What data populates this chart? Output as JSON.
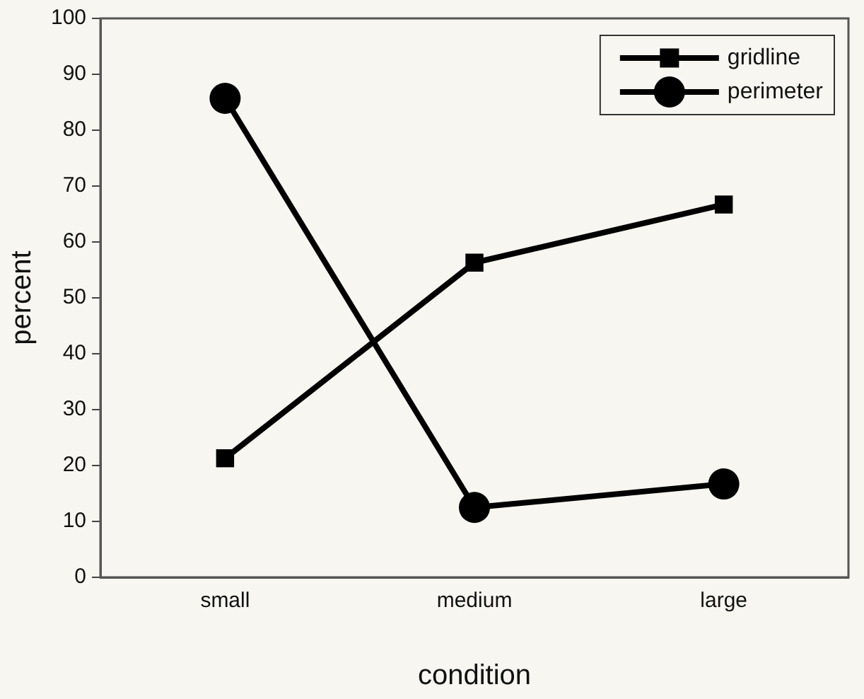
{
  "chart_data": {
    "type": "line",
    "xlabel": "condition",
    "ylabel": "percent",
    "categories": [
      "small",
      "medium",
      "large"
    ],
    "series": [
      {
        "name": "gridline",
        "color": "#000000",
        "marker": "square",
        "values": [
          21.3,
          56.3,
          66.7
        ]
      },
      {
        "name": "perimeter",
        "color": "#000000",
        "marker": "circle",
        "values": [
          85.7,
          12.5,
          16.7
        ]
      }
    ],
    "ylim": [
      0,
      100
    ],
    "yticks": [
      0,
      10,
      20,
      30,
      40,
      50,
      60,
      70,
      80,
      90,
      100
    ],
    "grid": false,
    "legend": "top right",
    "line_style": "solid"
  }
}
